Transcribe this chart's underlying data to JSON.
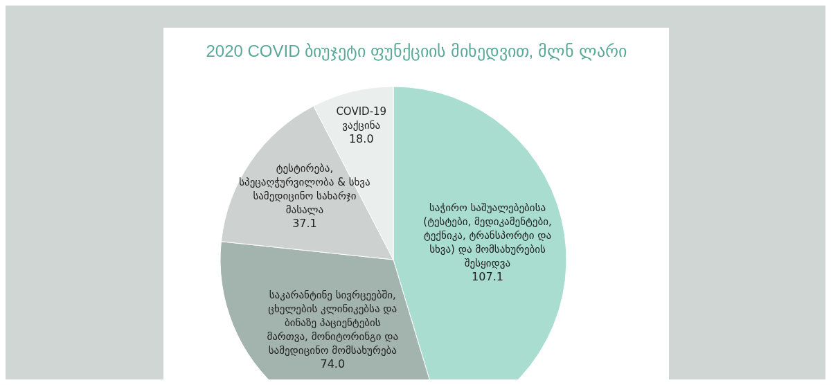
{
  "chart_data": {
    "type": "pie",
    "title": "2020 COVID ბიუჯეტი ფუნქციის მიხედვით, მლნ ლარი",
    "categories": [
      "საჭირო საშუალებებისა (ტესტები, მედიკამენტები, ტექნიკა, ტრანსპორტი და სხვა) და მომსახურების შესყიდვა",
      "საკარანტინე სივრცეებში, ცხელების კლინიკებსა და ბინაზე პაციენტების მართვა, მონიტორინგი და სამედიცინო მომსახურება",
      "ტესტირება, სპეცაღჭურვილობა & სხვა სამედიცინო სახარჯი მასალა",
      "COVID-19 ვაქცინა"
    ],
    "values": [
      107.1,
      74.0,
      37.1,
      18.0
    ],
    "value_labels": [
      "107.1",
      "74.0",
      "37.1",
      "18.0"
    ],
    "colors": [
      "#a8ddd0",
      "#a3b3ae",
      "#cdd2d0",
      "#eaefed"
    ],
    "legend": false
  }
}
